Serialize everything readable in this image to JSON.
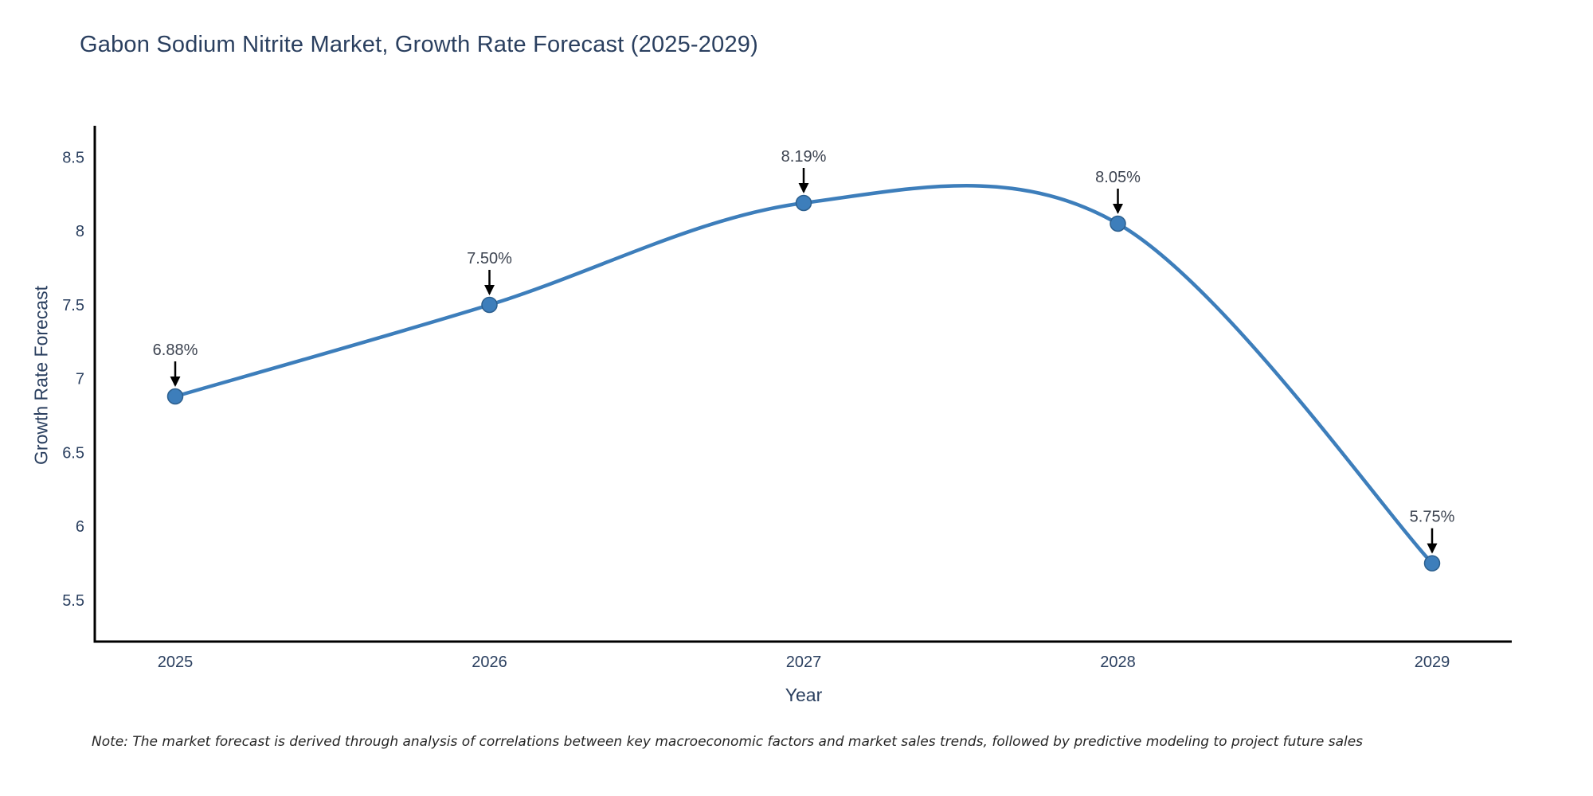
{
  "figure": {
    "note": "Note: The market forecast is derived through analysis of correlations between key macroeconomic factors and market sales trends, followed by predictive modeling to project future sales"
  },
  "chart_data": {
    "type": "line",
    "title": "Gabon Sodium Nitrite Market, Growth Rate Forecast (2025-2029)",
    "xlabel": "Year",
    "ylabel": "Growth Rate Forecast",
    "x": [
      2025,
      2026,
      2027,
      2028,
      2029
    ],
    "values": [
      6.88,
      7.5,
      8.19,
      8.05,
      5.75
    ],
    "point_labels": [
      "6.88%",
      "7.50%",
      "8.19%",
      "8.05%",
      "5.75%"
    ],
    "xtick_labels": [
      "2025",
      "2026",
      "2027",
      "2028",
      "2029"
    ],
    "ytick_values": [
      5.5,
      6,
      6.5,
      7,
      7.5,
      8,
      8.5
    ],
    "ytick_labels": [
      "5.5",
      "6",
      "6.5",
      "7",
      "7.5",
      "8",
      "8.5"
    ],
    "ylim": [
      5.21,
      8.71
    ],
    "line_shape": "spline",
    "grid": false,
    "legend": "none",
    "colors": {
      "line": "#3d7ebb",
      "marker": "#3d7ebb",
      "marker_edge": "#2c5f8e",
      "axis": "#000000",
      "tick_text": "#2a3f5f",
      "annotation_text": "#3d4451",
      "arrow": "#000000",
      "title_text": "#2a3f5f"
    }
  }
}
